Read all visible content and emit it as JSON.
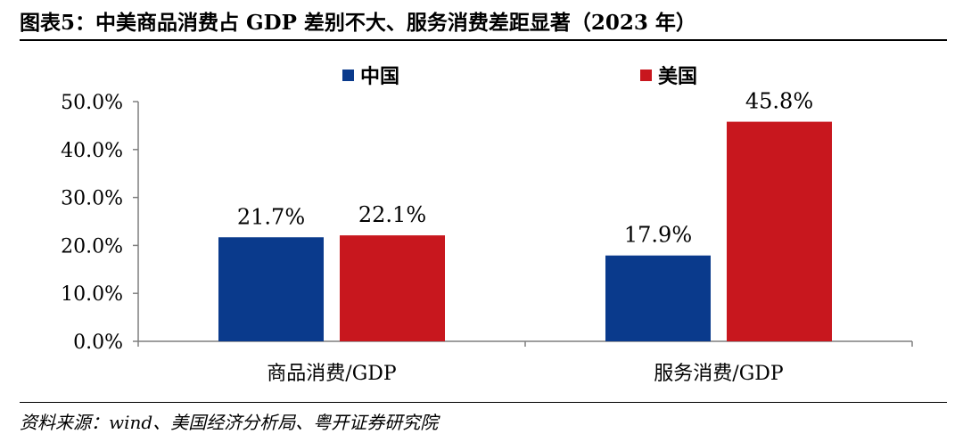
{
  "figure": {
    "title": "图表5：中美商品消费占 GDP 差别不大、服务消费差距显著（2023 年）",
    "source": "资料来源：wind、美国经济分析局、粤开证券研究院"
  },
  "colors": {
    "china": "#0a3a8c",
    "usa": "#c8171e",
    "axis": "#7f7f7f"
  },
  "chart_data": {
    "type": "bar",
    "categories": [
      "商品消费/GDP",
      "服务消费/GDP"
    ],
    "series": [
      {
        "name": "中国",
        "values": [
          21.7,
          17.9
        ],
        "labels": [
          "21.7%",
          "17.9%"
        ]
      },
      {
        "name": "美国",
        "values": [
          22.1,
          45.8
        ],
        "labels": [
          "22.1%",
          "45.8%"
        ]
      }
    ],
    "ylim": [
      0,
      50
    ],
    "yticks": [
      "0.0%",
      "10.0%",
      "20.0%",
      "30.0%",
      "40.0%",
      "50.0%"
    ],
    "legend_position": "top",
    "grid": false
  }
}
